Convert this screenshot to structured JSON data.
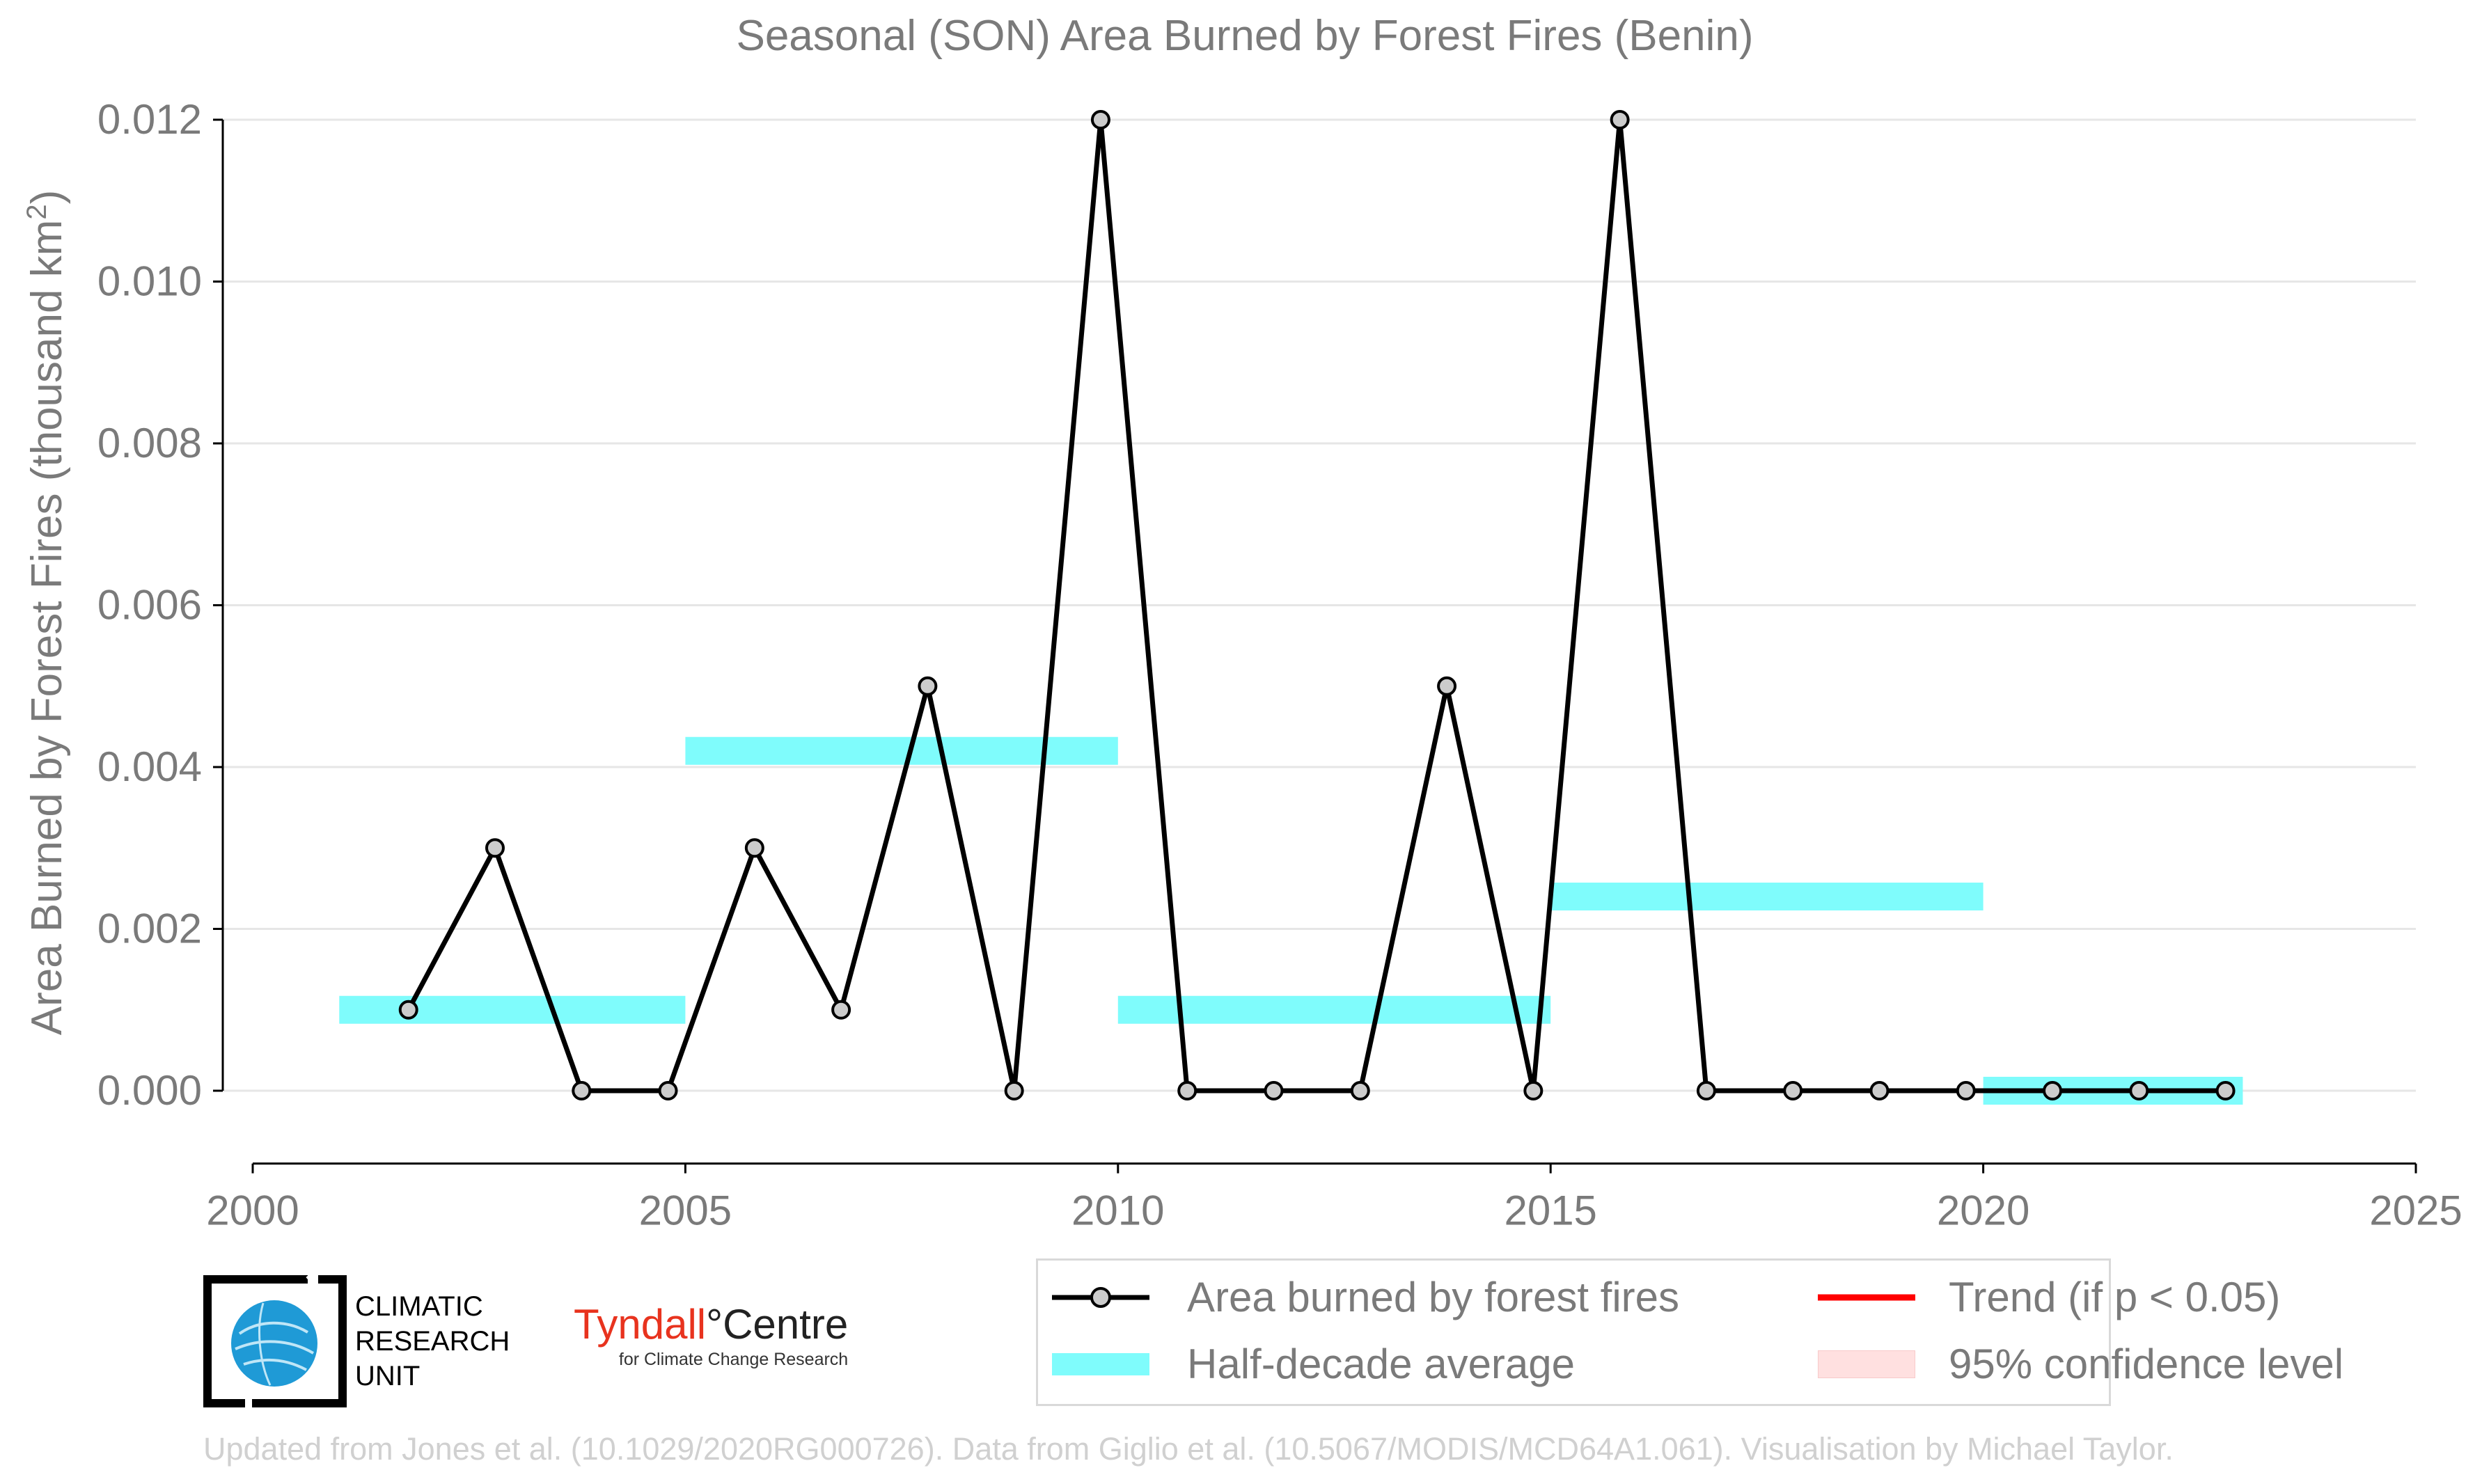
{
  "chart_data": {
    "type": "line",
    "title": "Seasonal (SON) Area Burned by Forest Fires (Benin)",
    "xlabel": "",
    "ylabel": "Area Burned by Forest Fires (thousand km",
    "ylabel_sup": "2",
    "ylabel_close": ")",
    "xlim": [
      2000,
      2025
    ],
    "ylim": [
      -0.0009,
      0.012
    ],
    "x_ticks": [
      2000,
      2005,
      2010,
      2015,
      2020,
      2025
    ],
    "x_tick_labels": [
      "2000",
      "2005",
      "2010",
      "2015",
      "2020",
      "2025"
    ],
    "y_ticks": [
      0.0,
      0.002,
      0.004,
      0.006,
      0.008,
      0.01,
      0.012
    ],
    "y_tick_labels": [
      "0.000",
      "0.002",
      "0.004",
      "0.006",
      "0.008",
      "0.010",
      "0.012"
    ],
    "grid": "horizontal",
    "legend_position": "bottom-right",
    "series": [
      {
        "name": "Area burned by forest fires",
        "color": "#000000",
        "marker_fill": "#cccccc",
        "x": [
          2001.8,
          2002.8,
          2003.8,
          2004.8,
          2005.8,
          2006.8,
          2007.8,
          2008.8,
          2009.8,
          2010.8,
          2011.8,
          2012.8,
          2013.8,
          2014.8,
          2015.8,
          2016.8,
          2017.8,
          2018.8,
          2019.8,
          2020.8,
          2021.8,
          2022.8
        ],
        "values": [
          0.001,
          0.003,
          0.0,
          0.0,
          0.003,
          0.001,
          0.005,
          0.0,
          0.012,
          0.0,
          0.0,
          0.0,
          0.005,
          0.0,
          0.012,
          0.0,
          0.0,
          0.0,
          0.0,
          0.0,
          0.0,
          0.0
        ]
      }
    ],
    "half_decade_average": {
      "name": "Half-decade average",
      "color": "#7ffcfc",
      "segments": [
        {
          "x0": 2001,
          "x1": 2005,
          "y": 0.001
        },
        {
          "x0": 2005,
          "x1": 2010,
          "y": 0.0042
        },
        {
          "x0": 2010,
          "x1": 2015,
          "y": 0.001
        },
        {
          "x0": 2015,
          "x1": 2020,
          "y": 0.0024
        },
        {
          "x0": 2020,
          "x1": 2023,
          "y": 0.0
        }
      ]
    },
    "legend": [
      {
        "label": "Area burned by forest fires",
        "kind": "line-marker",
        "color": "#000000"
      },
      {
        "label": "Trend (if p < 0.05)",
        "kind": "line",
        "color": "#ff0000"
      },
      {
        "label": "Half-decade average",
        "kind": "band",
        "color": "#7ffcfc"
      },
      {
        "label": "95% confidence level",
        "kind": "fill",
        "color": "#ffe0e0"
      }
    ]
  },
  "logos": {
    "cru_lines": [
      "CLIMATIC",
      "RESEARCH",
      "UNIT"
    ],
    "tyndall_part1": "Tyndall",
    "tyndall_part2": "°Centre",
    "tyndall_sub": "for Climate Change Research"
  },
  "footer": "Updated from Jones et al. (10.1029/2020RG000726). Data from Giglio et al. (10.5067/MODIS/MCD64A1.061). Visualisation by Michael Taylor."
}
